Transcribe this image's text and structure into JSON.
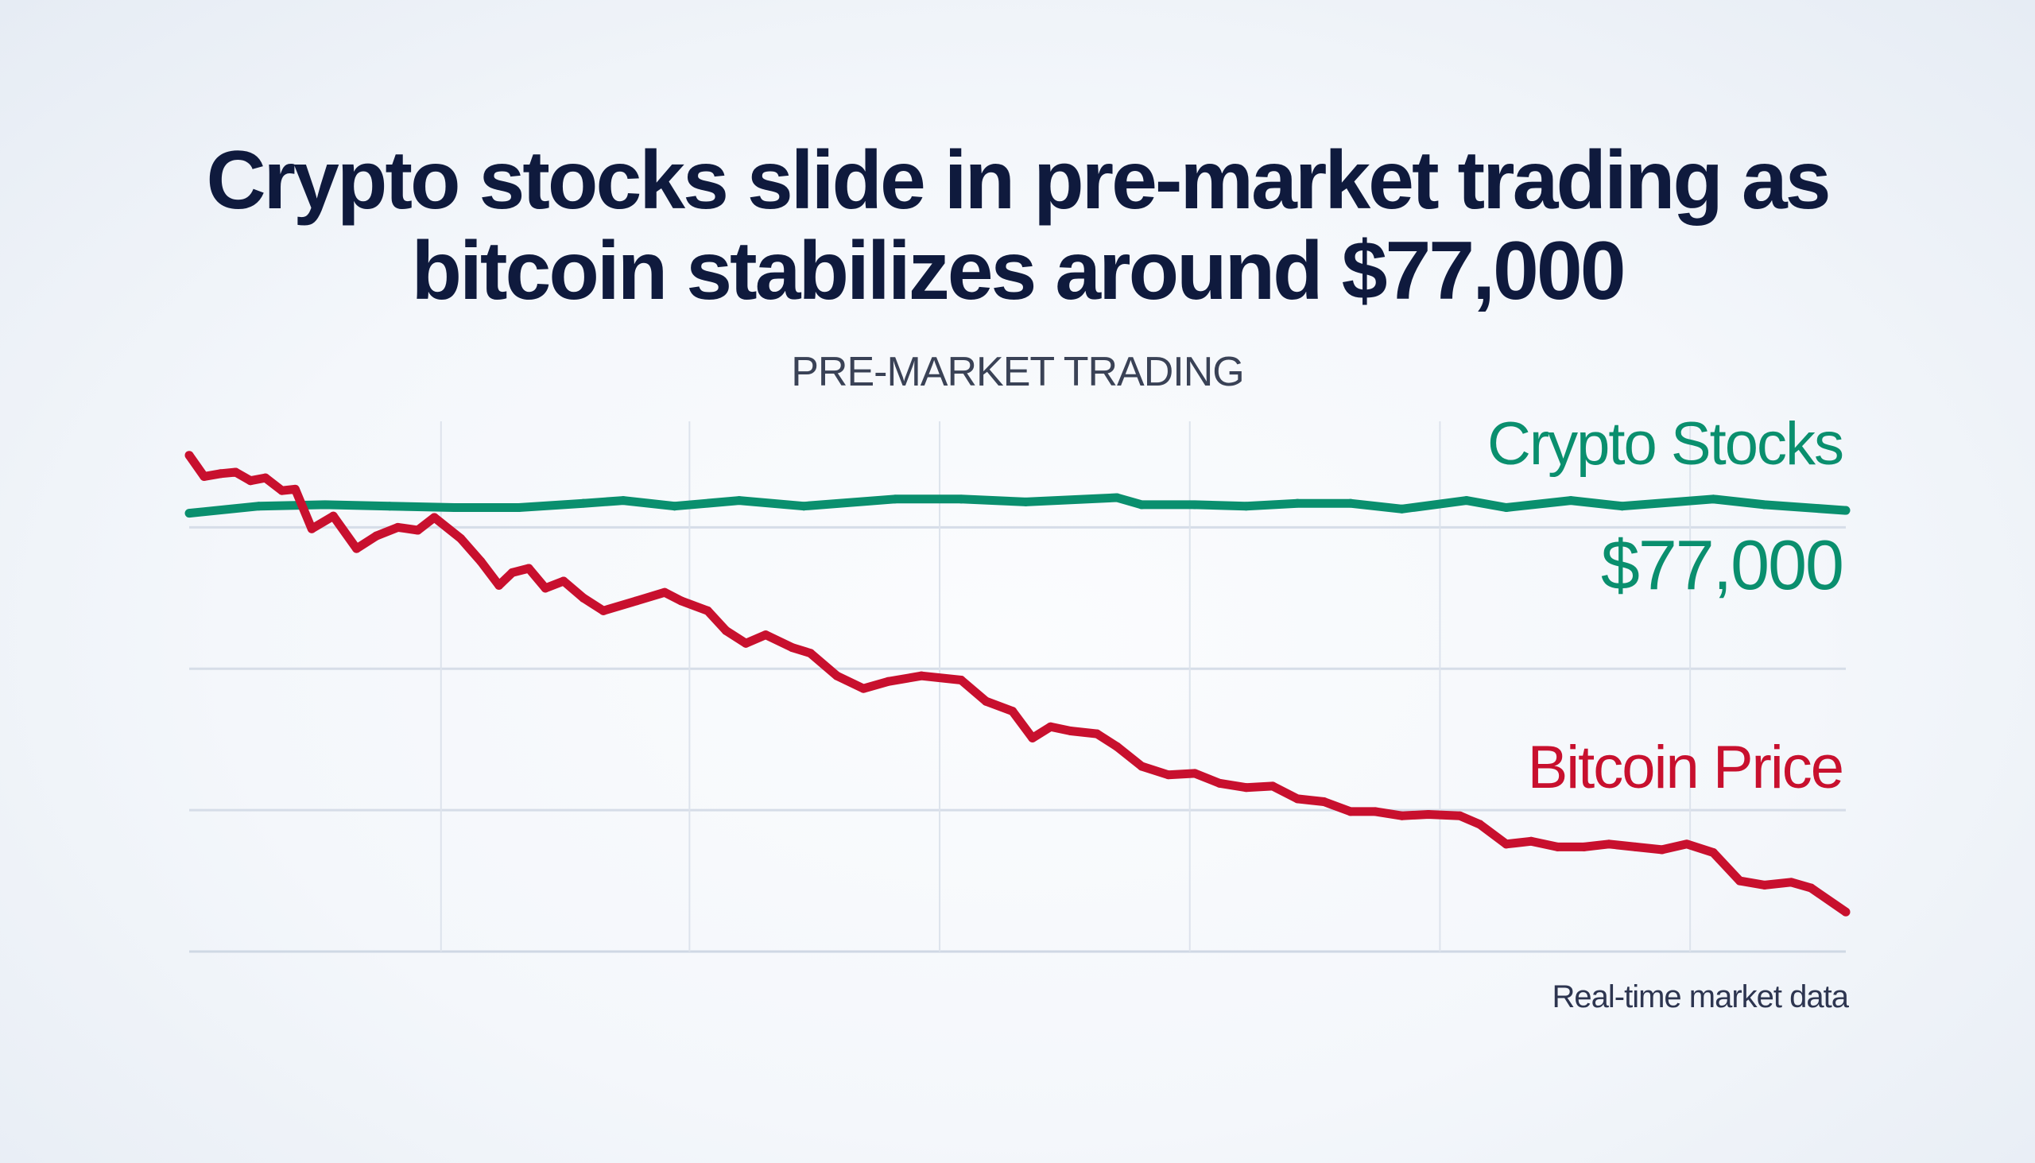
{
  "chart_data": {
    "type": "line",
    "title": "Crypto stocks slide in pre-market trading as bitcoin stabilizes around $77,000",
    "title_lines": [
      "Crypto stocks slide in pre-market trading as",
      "bitcoin stabilizes around $77,000"
    ],
    "subtitle": "PRE-MARKET TRADING",
    "xlabel": "",
    "ylabel": "",
    "xlim": [
      0,
      100
    ],
    "ylim": [
      0,
      3.75
    ],
    "grid": true,
    "x_grid": [
      0,
      15.2,
      30.2,
      45.3,
      60.4,
      75.5,
      90.6
    ],
    "y_grid": [
      0,
      1,
      2,
      3
    ],
    "series": [
      {
        "name": "Crypto Stocks",
        "color": "#0a8f6e",
        "points": [
          [
            0,
            3.1
          ],
          [
            4.2,
            3.15
          ],
          [
            8.2,
            3.16
          ],
          [
            12.1,
            3.15
          ],
          [
            16.0,
            3.14
          ],
          [
            19.9,
            3.14
          ],
          [
            23.8,
            3.17
          ],
          [
            26.2,
            3.19
          ],
          [
            29.3,
            3.15
          ],
          [
            33.2,
            3.19
          ],
          [
            37.1,
            3.15
          ],
          [
            42.6,
            3.2
          ],
          [
            46.6,
            3.2
          ],
          [
            50.5,
            3.18
          ],
          [
            56.0,
            3.21
          ],
          [
            57.5,
            3.16
          ],
          [
            60.7,
            3.16
          ],
          [
            63.8,
            3.15
          ],
          [
            66.9,
            3.17
          ],
          [
            70.1,
            3.17
          ],
          [
            73.2,
            3.13
          ],
          [
            77.1,
            3.19
          ],
          [
            79.5,
            3.14
          ],
          [
            83.4,
            3.19
          ],
          [
            86.5,
            3.15
          ],
          [
            92.0,
            3.2
          ],
          [
            95.1,
            3.16
          ],
          [
            100,
            3.12
          ]
        ]
      },
      {
        "name": "Bitcoin Price",
        "color": "#c8102e",
        "points": [
          [
            0,
            3.51
          ],
          [
            0.9,
            3.36
          ],
          [
            1.9,
            3.38
          ],
          [
            2.8,
            3.39
          ],
          [
            3.7,
            3.33
          ],
          [
            4.6,
            3.35
          ],
          [
            5.6,
            3.26
          ],
          [
            6.4,
            3.27
          ],
          [
            7.4,
            2.99
          ],
          [
            8.7,
            3.08
          ],
          [
            10.1,
            2.85
          ],
          [
            11.3,
            2.94
          ],
          [
            12.6,
            3.0
          ],
          [
            13.8,
            2.98
          ],
          [
            14.8,
            3.07
          ],
          [
            16.4,
            2.92
          ],
          [
            17.6,
            2.76
          ],
          [
            18.7,
            2.59
          ],
          [
            19.5,
            2.68
          ],
          [
            20.5,
            2.71
          ],
          [
            21.5,
            2.57
          ],
          [
            22.6,
            2.62
          ],
          [
            23.8,
            2.5
          ],
          [
            25.0,
            2.41
          ],
          [
            27.0,
            2.48
          ],
          [
            28.7,
            2.54
          ],
          [
            29.7,
            2.48
          ],
          [
            31.3,
            2.41
          ],
          [
            32.4,
            2.27
          ],
          [
            33.6,
            2.18
          ],
          [
            34.8,
            2.24
          ],
          [
            36.4,
            2.15
          ],
          [
            37.5,
            2.11
          ],
          [
            39.1,
            1.95
          ],
          [
            40.7,
            1.86
          ],
          [
            42.2,
            1.91
          ],
          [
            44.2,
            1.95
          ],
          [
            46.6,
            1.92
          ],
          [
            48.1,
            1.77
          ],
          [
            49.7,
            1.7
          ],
          [
            50.9,
            1.51
          ],
          [
            52.0,
            1.59
          ],
          [
            53.2,
            1.56
          ],
          [
            54.8,
            1.54
          ],
          [
            56.0,
            1.45
          ],
          [
            57.5,
            1.31
          ],
          [
            59.1,
            1.25
          ],
          [
            60.7,
            1.26
          ],
          [
            62.2,
            1.19
          ],
          [
            63.8,
            1.16
          ],
          [
            65.4,
            1.17
          ],
          [
            66.9,
            1.08
          ],
          [
            68.5,
            1.06
          ],
          [
            70.1,
            0.99
          ],
          [
            71.6,
            0.99
          ],
          [
            73.2,
            0.96
          ],
          [
            74.8,
            0.97
          ],
          [
            76.7,
            0.96
          ],
          [
            77.9,
            0.9
          ],
          [
            79.5,
            0.76
          ],
          [
            81.0,
            0.78
          ],
          [
            82.6,
            0.74
          ],
          [
            84.2,
            0.74
          ],
          [
            85.7,
            0.76
          ],
          [
            87.3,
            0.74
          ],
          [
            88.9,
            0.72
          ],
          [
            90.4,
            0.76
          ],
          [
            92.0,
            0.7
          ],
          [
            93.6,
            0.5
          ],
          [
            95.1,
            0.47
          ],
          [
            96.7,
            0.49
          ],
          [
            97.9,
            0.45
          ],
          [
            100,
            0.28
          ]
        ]
      }
    ],
    "annotations": {
      "crypto_label": "Crypto Stocks",
      "price_label": "$77,000",
      "bitcoin_label": "Bitcoin Price",
      "source": "Real-time market data"
    },
    "legend": "right (inline labels)"
  }
}
